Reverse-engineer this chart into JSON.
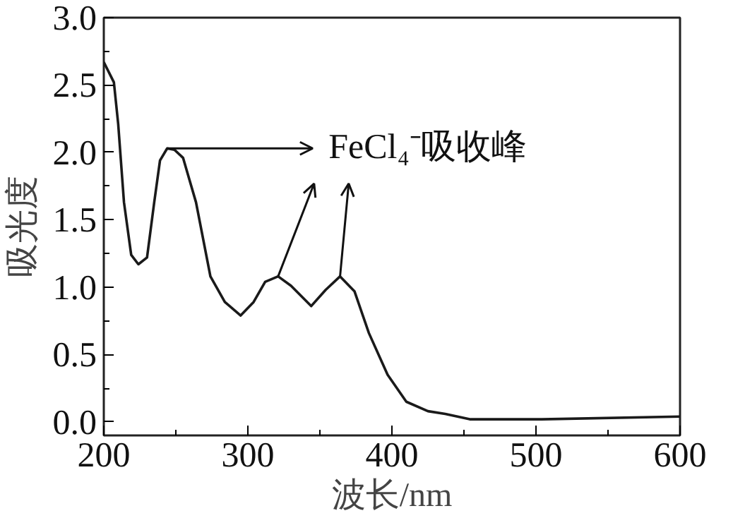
{
  "chart_data": {
    "type": "line",
    "xlabel": "波长/nm",
    "ylabel": "吸光度",
    "x": [
      200,
      207,
      210,
      214,
      219,
      224,
      230,
      235,
      239,
      244,
      249,
      255,
      264,
      274,
      284,
      295,
      304,
      312,
      321,
      330,
      344,
      354,
      364,
      374,
      384,
      397,
      410,
      425,
      437,
      454,
      504,
      600
    ],
    "series": [
      {
        "color": "#1a1a1a",
        "values": [
          2.67,
          2.52,
          2.21,
          1.63,
          1.24,
          1.17,
          1.22,
          1.63,
          1.94,
          2.03,
          2.02,
          1.96,
          1.63,
          1.08,
          0.89,
          0.79,
          0.89,
          1.04,
          1.08,
          1.01,
          0.86,
          0.98,
          1.08,
          0.97,
          0.66,
          0.35,
          0.15,
          0.08,
          0.06,
          0.02,
          0.02,
          0.04
        ]
      }
    ],
    "xlim": [
      200,
      600
    ],
    "xticks": [
      200,
      300,
      400,
      500,
      600
    ],
    "ylim": [
      -0.1,
      3.0
    ],
    "yticks": [
      {
        "value": 0,
        "label": "0.0"
      },
      {
        "value": 0.5,
        "label": "0.5"
      },
      {
        "value": 1,
        "label": "1.0"
      },
      {
        "value": 1.5,
        "label": "1.5"
      },
      {
        "value": 2,
        "label": "2.0"
      },
      {
        "value": 2.5,
        "label": "2.5"
      },
      {
        "value": 3,
        "label": "3.0"
      }
    ],
    "grid": false,
    "marker": "none",
    "line_style": "solid",
    "annotations": [
      {
        "text": "FeCl₄⁻吸收峰",
        "x": 244,
        "y": 2.03
      }
    ]
  }
}
